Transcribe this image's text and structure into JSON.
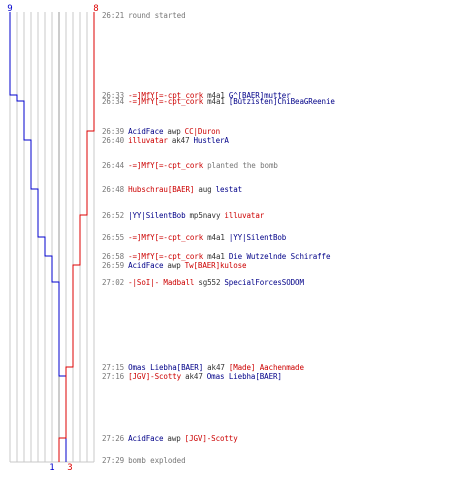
{
  "colors": {
    "blue_team": "#0000cc",
    "red_team": "#dd0000",
    "timestamp": "#777777",
    "grid": "#c0c0c0"
  },
  "score_markers": {
    "start_left": "9",
    "start_right": "8",
    "end_left": "1",
    "end_right": "3"
  },
  "events": [
    {
      "time": "26:21",
      "parts": [
        {
          "text": "round started",
          "cls": "gray"
        }
      ]
    },
    {
      "time": "26:33",
      "parts": [
        {
          "text": "-=]MfY[=-cpt_cork",
          "cls": "red"
        },
        {
          "text": "m4a1",
          "cls": "dark"
        },
        {
          "text": "G^[BAER]mutter",
          "cls": "blue"
        }
      ]
    },
    {
      "time": "26:34",
      "parts": [
        {
          "text": "-=]MfY[=-cpt_cork",
          "cls": "red"
        },
        {
          "text": "m4a1",
          "cls": "dark"
        },
        {
          "text": "[Butzisten]ChiBeaGReenie",
          "cls": "blue"
        }
      ]
    },
    {
      "time": "26:39",
      "parts": [
        {
          "text": "AcidFace",
          "cls": "blue"
        },
        {
          "text": "awp",
          "cls": "dark"
        },
        {
          "text": "CC|Duron",
          "cls": "red"
        }
      ]
    },
    {
      "time": "26:40",
      "parts": [
        {
          "text": "illuvatar",
          "cls": "red"
        },
        {
          "text": "ak47",
          "cls": "dark"
        },
        {
          "text": "HustlerA",
          "cls": "blue"
        }
      ]
    },
    {
      "time": "26:44",
      "parts": [
        {
          "text": "-=]MfY[=-cpt_cork",
          "cls": "red"
        },
        {
          "text": "planted the bomb",
          "cls": "gray"
        }
      ]
    },
    {
      "time": "26:48",
      "parts": [
        {
          "text": "Hubschrau[BAER]",
          "cls": "red"
        },
        {
          "text": "aug",
          "cls": "dark"
        },
        {
          "text": "lestat",
          "cls": "blue"
        }
      ]
    },
    {
      "time": "26:52",
      "parts": [
        {
          "text": "|YY|SilentBob",
          "cls": "blue"
        },
        {
          "text": "mp5navy",
          "cls": "dark"
        },
        {
          "text": "illuvatar",
          "cls": "red"
        }
      ]
    },
    {
      "time": "26:55",
      "parts": [
        {
          "text": "-=]MfY[=-cpt_cork",
          "cls": "red"
        },
        {
          "text": "m4a1",
          "cls": "dark"
        },
        {
          "text": "|YY|SilentBob",
          "cls": "blue"
        }
      ]
    },
    {
      "time": "26:58",
      "parts": [
        {
          "text": "-=]MfY[=-cpt_cork",
          "cls": "red"
        },
        {
          "text": "m4a1",
          "cls": "dark"
        },
        {
          "text": "Die Wutzelnde Schiraffe",
          "cls": "blue"
        }
      ]
    },
    {
      "time": "26:59",
      "parts": [
        {
          "text": "AcidFace",
          "cls": "blue"
        },
        {
          "text": "awp",
          "cls": "dark"
        },
        {
          "text": "Tw[BAER]kulose",
          "cls": "red"
        }
      ]
    },
    {
      "time": "27:02",
      "parts": [
        {
          "text": "-|SoI|- Madball",
          "cls": "red"
        },
        {
          "text": "sg552",
          "cls": "dark"
        },
        {
          "text": "SpecialForcesSODOM",
          "cls": "blue"
        }
      ]
    },
    {
      "time": "27:15",
      "parts": [
        {
          "text": "Omas Liebha[BAER]",
          "cls": "blue"
        },
        {
          "text": "ak47",
          "cls": "dark"
        },
        {
          "text": "[Made] Aachenmade",
          "cls": "red"
        }
      ]
    },
    {
      "time": "27:16",
      "parts": [
        {
          "text": "[JGV]-Scotty",
          "cls": "red"
        },
        {
          "text": "ak47",
          "cls": "dark"
        },
        {
          "text": "Omas Liebha[BAER]",
          "cls": "blue"
        }
      ]
    },
    {
      "time": "27:26",
      "parts": [
        {
          "text": "AcidFace",
          "cls": "blue"
        },
        {
          "text": "awp",
          "cls": "dark"
        },
        {
          "text": "[JGV]-Scotty",
          "cls": "red"
        }
      ]
    },
    {
      "time": "27:29",
      "parts": [
        {
          "text": "bomb exploded",
          "cls": "gray"
        }
      ]
    }
  ]
}
